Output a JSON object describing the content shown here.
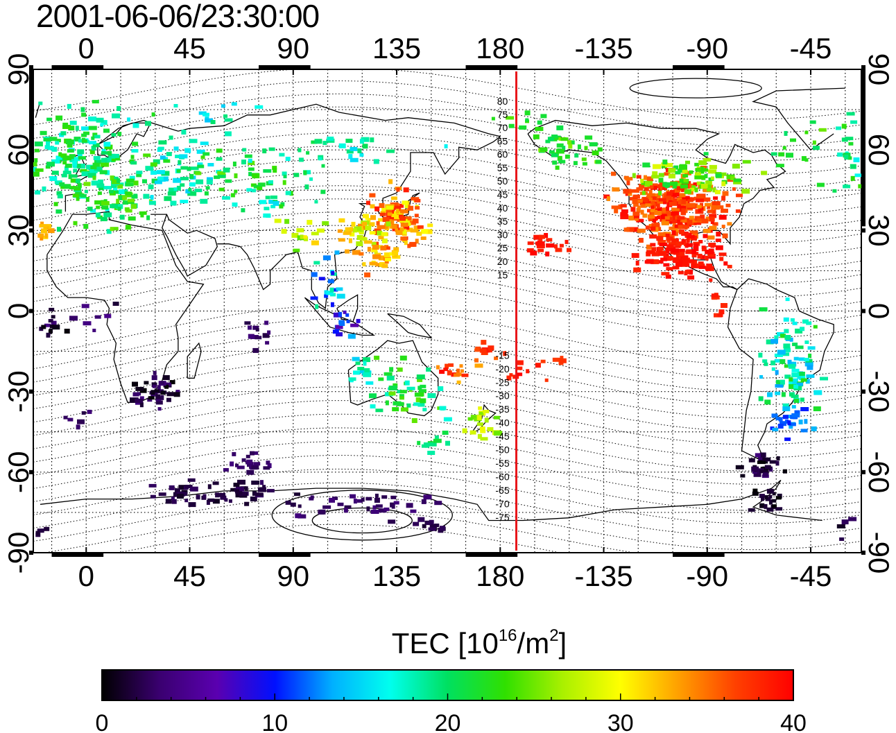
{
  "timestamp": "2001-06-06/23:30:00",
  "map": {
    "top_lon_ticks": [
      "0",
      "45",
      "90",
      "135",
      "180",
      "-135",
      "-90",
      "-45"
    ],
    "bottom_lon_ticks": [
      "0",
      "45",
      "90",
      "135",
      "180",
      "-135",
      "-90",
      "-45"
    ],
    "lat_ticks": [
      "90",
      "60",
      "30",
      "0",
      "-30",
      "-60",
      "-90"
    ],
    "mag_lat_labels_north": [
      "80",
      "75",
      "70",
      "65",
      "60",
      "55",
      "50",
      "45",
      "40",
      "35",
      "30",
      "25",
      "20",
      "15"
    ],
    "mag_lat_labels_south": [
      "-15",
      "-20",
      "-25",
      "-30",
      "-35",
      "-40",
      "-45",
      "-50",
      "-55",
      "-60",
      "-65",
      "-70",
      "-75"
    ],
    "marker_line_color": "#e8161b",
    "marker_line_lon": 187
  },
  "colorbar": {
    "title_lead": "TEC  [10",
    "title_exp1": "16",
    "title_mid": "/m",
    "title_exp2": "2",
    "title_tail": "]",
    "min": 0,
    "max": 40,
    "tick_labels": [
      "0",
      "10",
      "20",
      "30",
      "40"
    ],
    "colormap": [
      "#000000",
      "#3a0070",
      "#5a00b0",
      "#0010ff",
      "#00b0ff",
      "#00ffee",
      "#00e060",
      "#30e000",
      "#aaf000",
      "#ffff00",
      "#ffa000",
      "#ff4000",
      "#ff0000"
    ]
  }
}
